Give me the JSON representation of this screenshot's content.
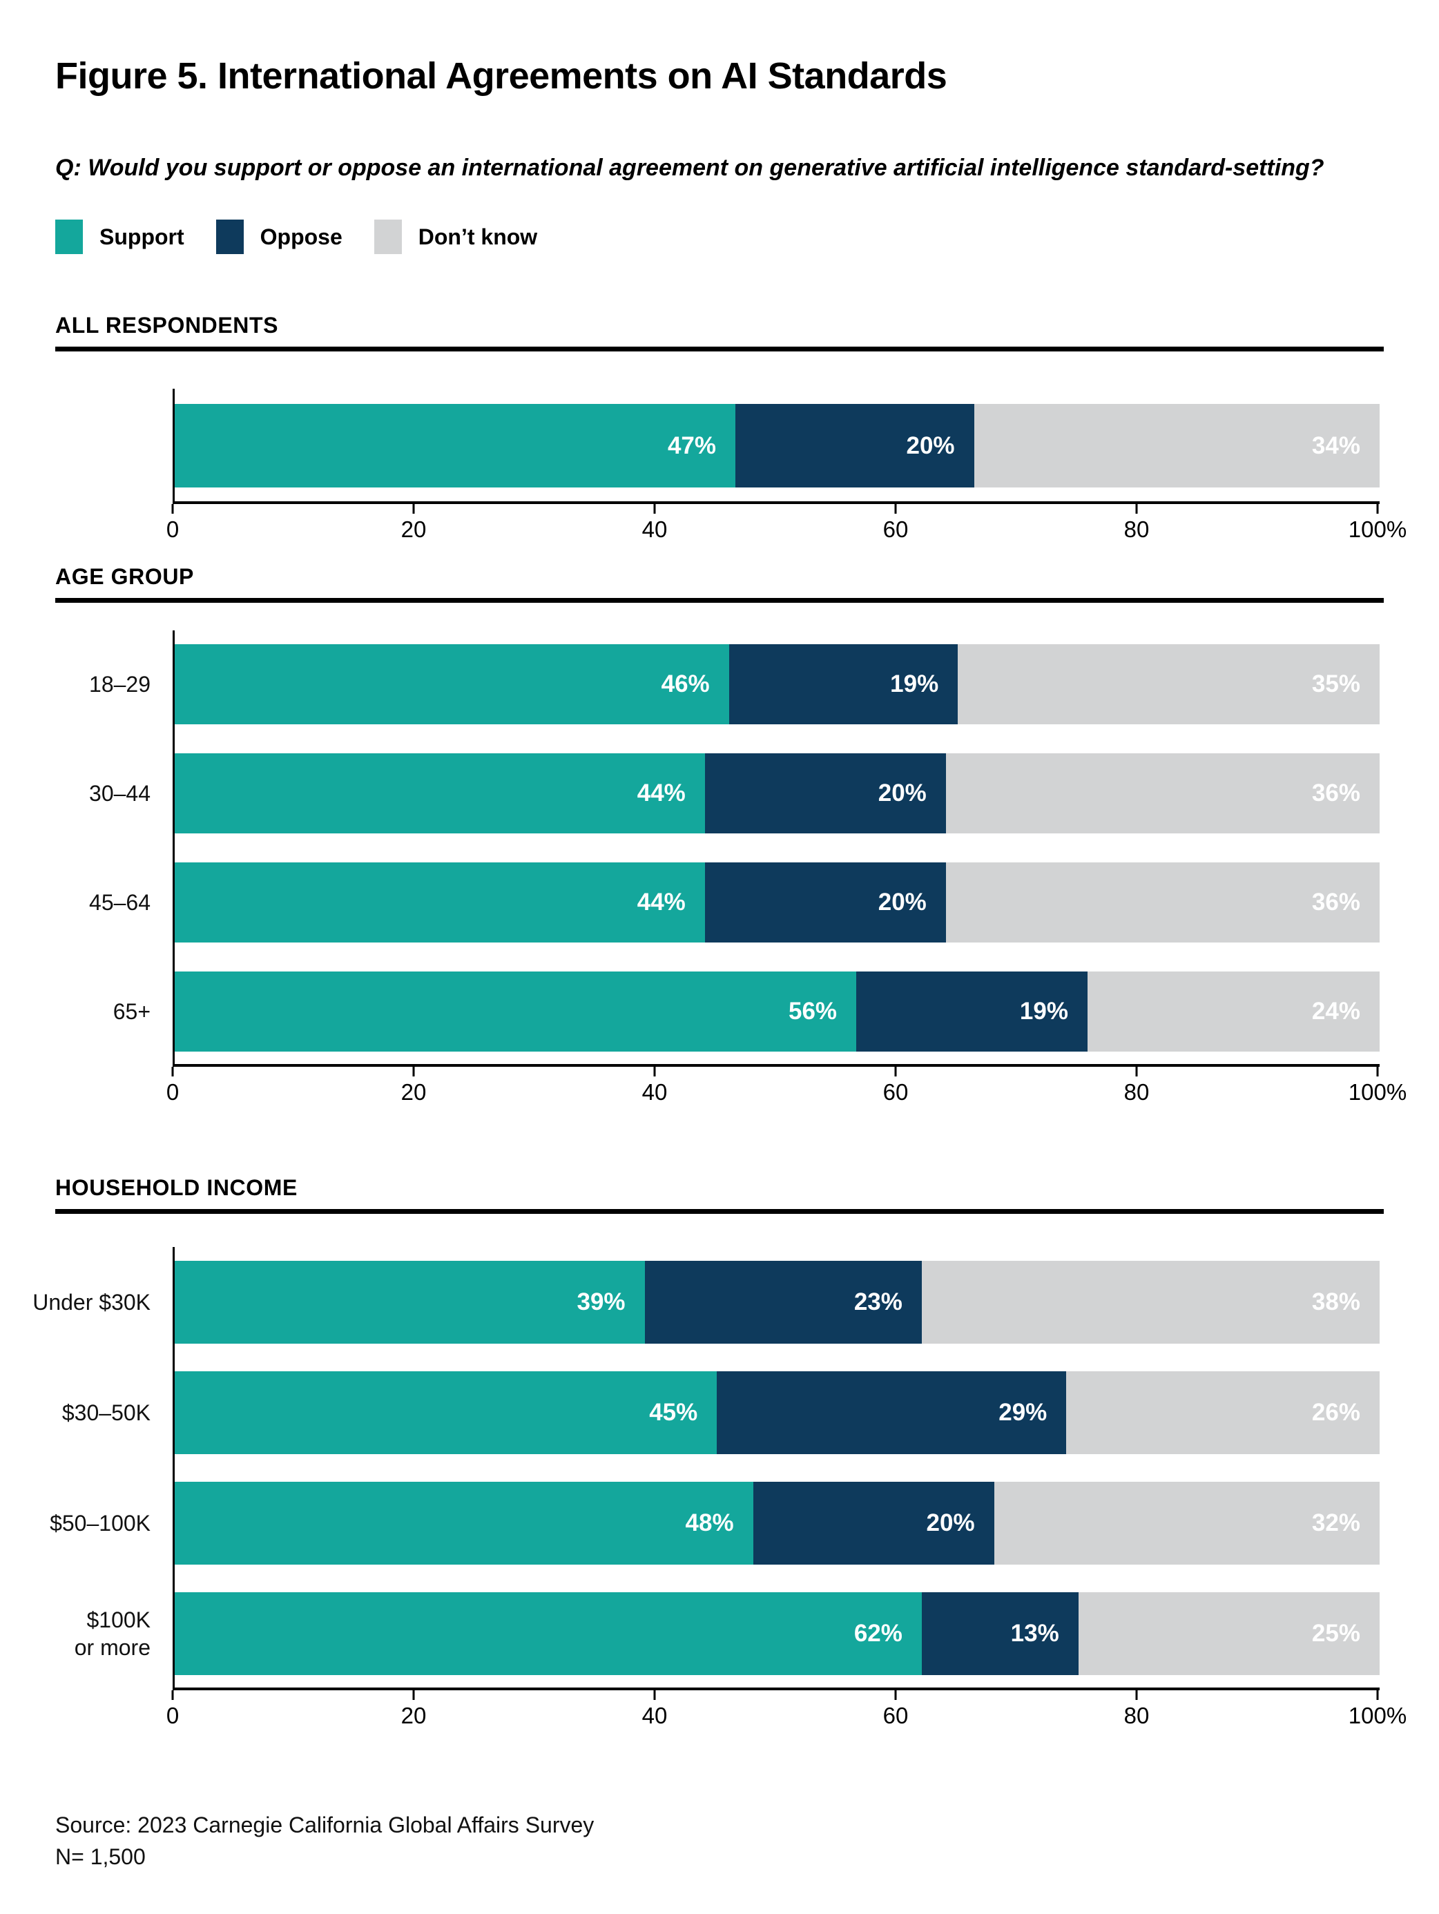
{
  "figure": {
    "title": "Figure 5. International Agreements on AI Standards",
    "question": "Q: Would you support or oppose an international agreement on generative artificial intelligence standard-setting?",
    "source": "Source: 2023 Carnegie California Global Affairs Survey",
    "sample_size": "N= 1,500"
  },
  "colors": {
    "support": "#14A79C",
    "oppose": "#0E3A5C",
    "dont_know": "#D2D3D4",
    "axis": "#000000",
    "value_label": "#FFFFFF"
  },
  "legend": {
    "items": [
      {
        "label": "Support",
        "color": "#14A79C"
      },
      {
        "label": "Oppose",
        "color": "#0E3A5C"
      },
      {
        "label": "Don’t know",
        "color": "#D2D3D4"
      }
    ]
  },
  "axis": {
    "min": 0,
    "max": 100,
    "ticks": [
      {
        "value": 0,
        "label": "0"
      },
      {
        "value": 20,
        "label": "20"
      },
      {
        "value": 40,
        "label": "40"
      },
      {
        "value": 60,
        "label": "60"
      },
      {
        "value": 80,
        "label": "80"
      },
      {
        "value": 100,
        "label": "100%"
      }
    ]
  },
  "chart_data": [
    {
      "type": "bar",
      "orientation": "horizontal",
      "stacked": true,
      "section_title": "ALL RESPONDENTS",
      "categories": [
        "All respondents"
      ],
      "category_labels_visible": false,
      "value_suffix": "%",
      "xlim": [
        0,
        100
      ],
      "series": [
        {
          "name": "Support",
          "color": "#14A79C",
          "values": [
            47
          ]
        },
        {
          "name": "Oppose",
          "color": "#0E3A5C",
          "values": [
            20
          ]
        },
        {
          "name": "Don’t know",
          "color": "#D2D3D4",
          "values": [
            34
          ]
        }
      ]
    },
    {
      "type": "bar",
      "orientation": "horizontal",
      "stacked": true,
      "section_title": "AGE GROUP",
      "categories": [
        "18–29",
        "30–44",
        "45–64",
        "65+"
      ],
      "category_labels_visible": true,
      "value_suffix": "%",
      "xlim": [
        0,
        100
      ],
      "series": [
        {
          "name": "Support",
          "color": "#14A79C",
          "values": [
            46,
            44,
            44,
            56
          ]
        },
        {
          "name": "Oppose",
          "color": "#0E3A5C",
          "values": [
            19,
            20,
            20,
            19
          ]
        },
        {
          "name": "Don’t know",
          "color": "#D2D3D4",
          "values": [
            35,
            36,
            36,
            24
          ]
        }
      ]
    },
    {
      "type": "bar",
      "orientation": "horizontal",
      "stacked": true,
      "section_title": "HOUSEHOLD INCOME",
      "categories": [
        "Under $30K",
        "$30–50K",
        "$50–100K",
        "$100K\nor more"
      ],
      "category_labels_visible": true,
      "value_suffix": "%",
      "xlim": [
        0,
        100
      ],
      "series": [
        {
          "name": "Support",
          "color": "#14A79C",
          "values": [
            39,
            45,
            48,
            62
          ]
        },
        {
          "name": "Oppose",
          "color": "#0E3A5C",
          "values": [
            23,
            29,
            20,
            13
          ]
        },
        {
          "name": "Don’t know",
          "color": "#D2D3D4",
          "values": [
            38,
            26,
            32,
            25
          ]
        }
      ]
    }
  ]
}
